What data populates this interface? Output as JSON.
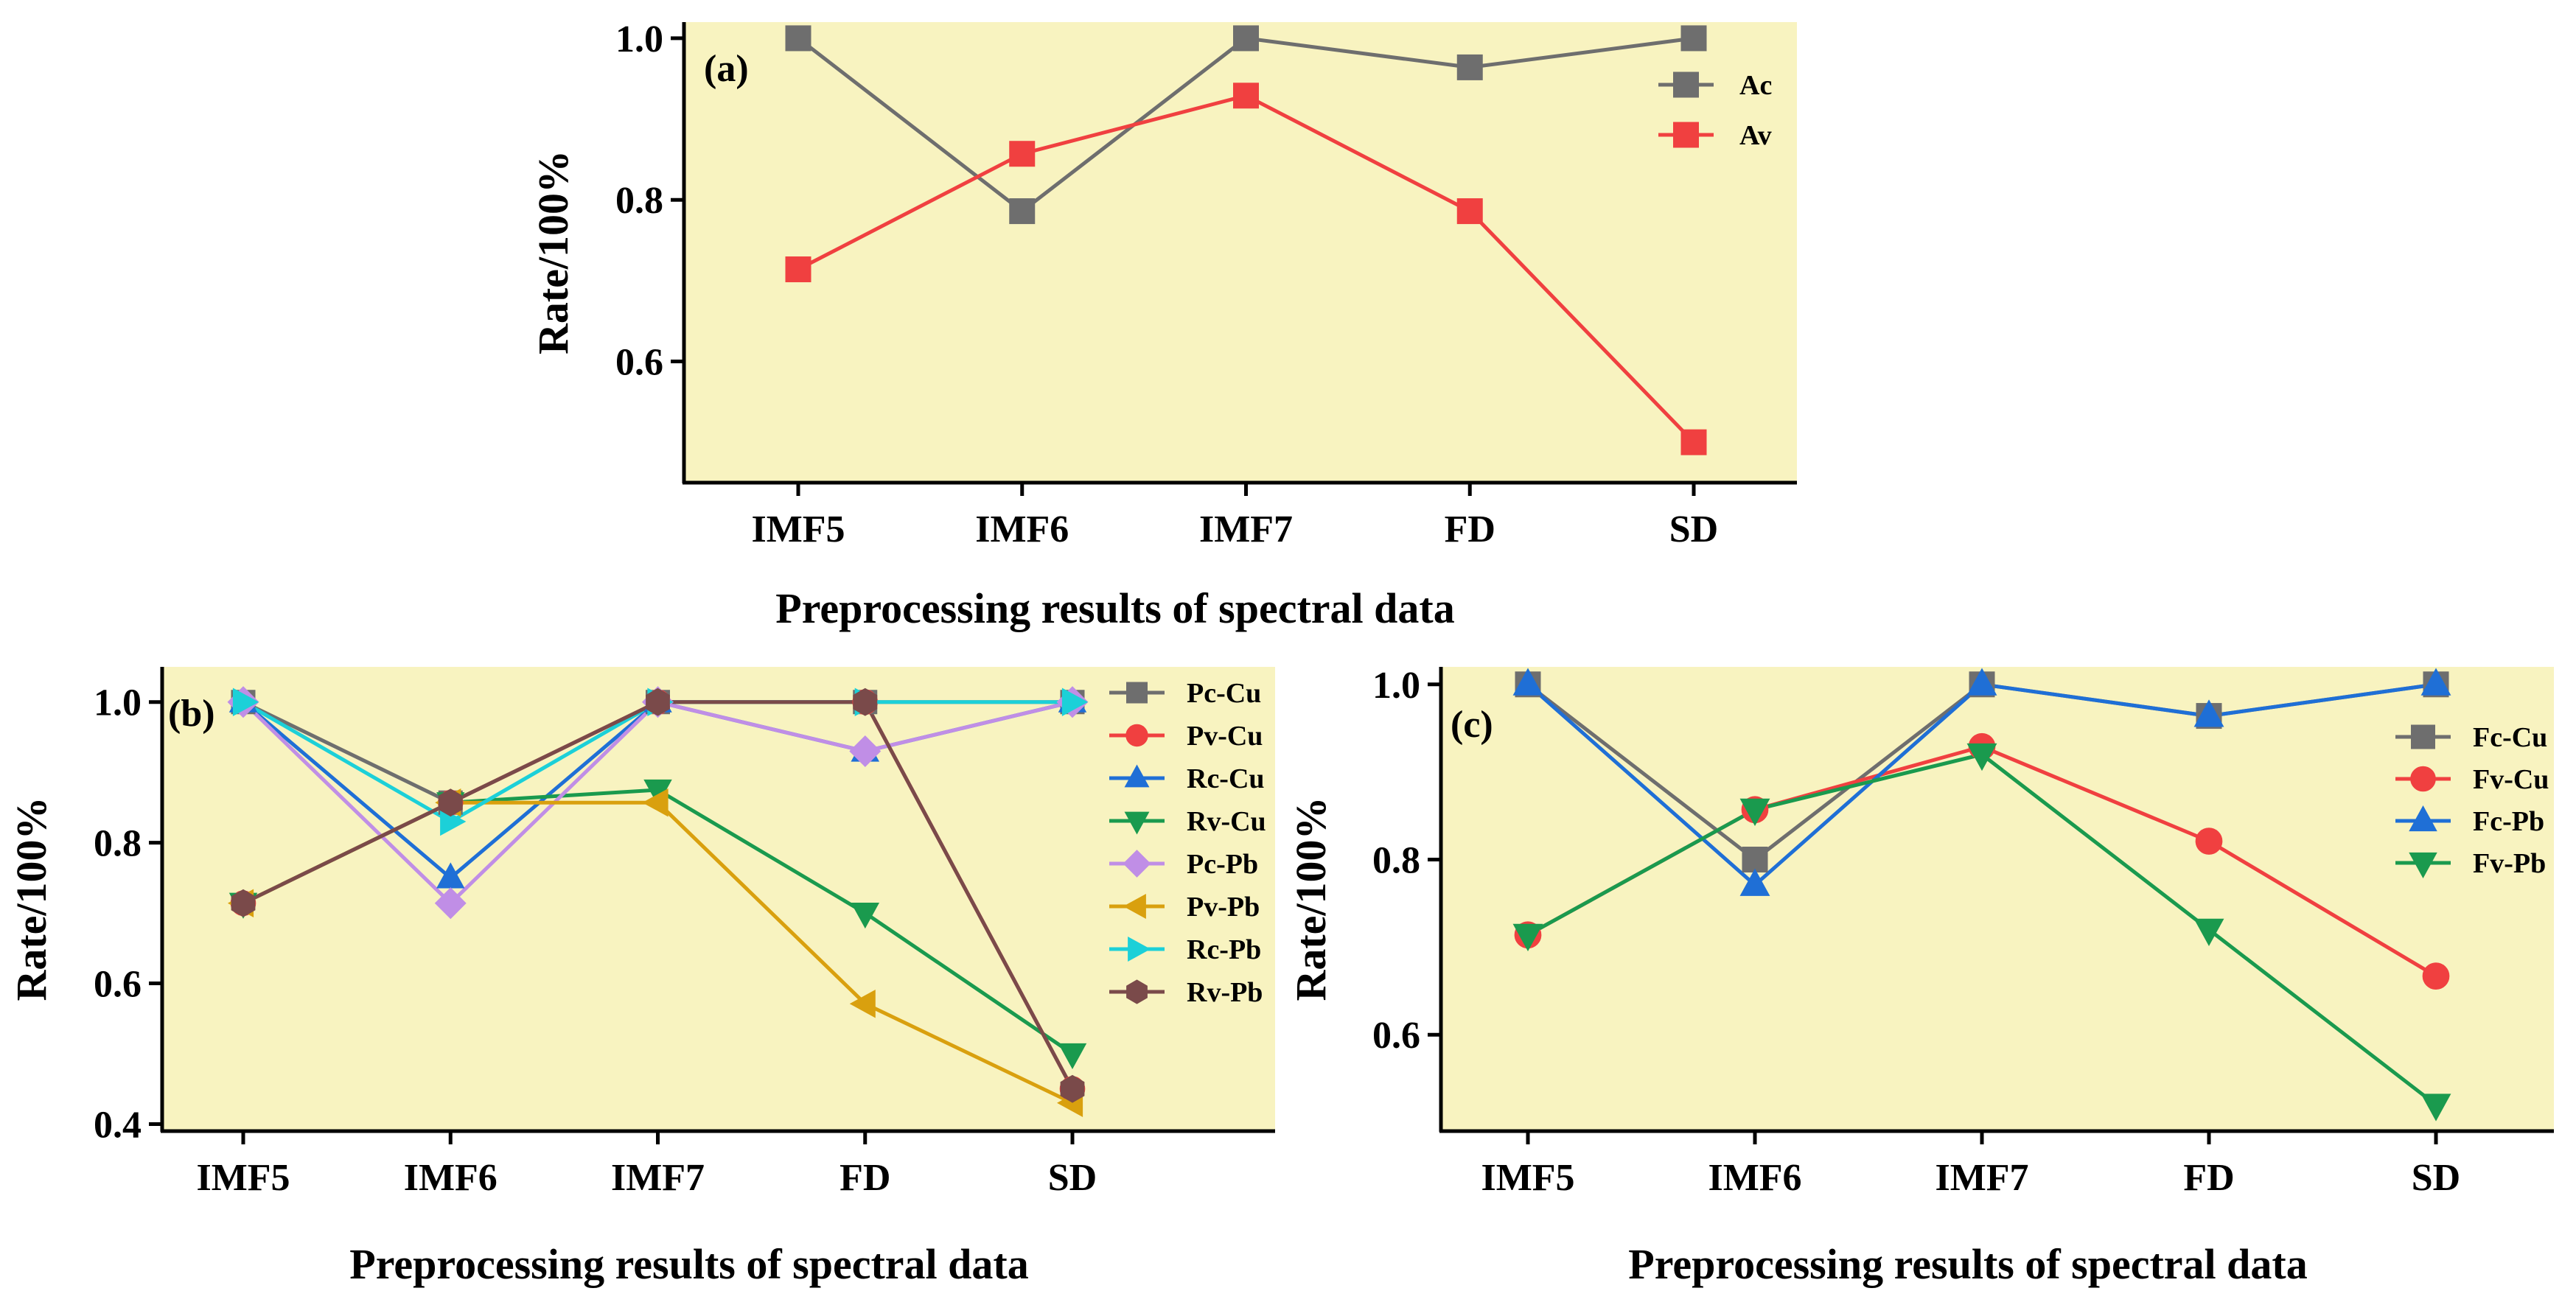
{
  "chart_data": [
    {
      "id": "a",
      "type": "line",
      "panel_label": "(a)",
      "xlabel": "Preprocessing results of spectral data",
      "ylabel": "Rate/100%",
      "categories": [
        "IMF5",
        "IMF6",
        "IMF7",
        "FD",
        "SD"
      ],
      "ylim": [
        0.45,
        1.02
      ],
      "yticks": [
        0.6,
        0.8,
        1.0
      ],
      "ytick_labels": [
        "0.6",
        "0.8",
        "1.0"
      ],
      "legend_position": "top-right",
      "background": "#f8f3c0",
      "series": [
        {
          "name": "Ac",
          "color": "#6e6e6e",
          "marker": "square",
          "values": [
            1.0,
            0.786,
            1.0,
            0.964,
            1.0
          ]
        },
        {
          "name": "Av",
          "color": "#f04040",
          "marker": "square",
          "values": [
            0.714,
            0.857,
            0.929,
            0.786,
            0.5
          ]
        }
      ]
    },
    {
      "id": "b",
      "type": "line",
      "panel_label": "(b)",
      "xlabel": "Preprocessing results of spectral data",
      "ylabel": "Rate/100%",
      "categories": [
        "IMF5",
        "IMF6",
        "IMF7",
        "FD",
        "SD"
      ],
      "ylim": [
        0.39,
        1.05
      ],
      "yticks": [
        0.4,
        0.6,
        0.8,
        1.0
      ],
      "ytick_labels": [
        "0.4",
        "0.6",
        "0.8",
        "1.0"
      ],
      "legend_position": "top-right",
      "background": "#f8f3c0",
      "series": [
        {
          "name": "Pc-Cu",
          "color": "#6e6e6e",
          "marker": "square",
          "values": [
            1.0,
            0.857,
            1.0,
            1.0,
            1.0
          ]
        },
        {
          "name": "Pv-Cu",
          "color": "#f04040",
          "marker": "circle",
          "values": [
            0.714,
            0.857,
            1.0,
            1.0,
            0.45
          ]
        },
        {
          "name": "Rc-Cu",
          "color": "#1f6fd6",
          "marker": "triangle-up",
          "values": [
            1.0,
            0.75,
            1.0,
            0.93,
            1.0
          ]
        },
        {
          "name": "Rv-Cu",
          "color": "#1a9a4e",
          "marker": "triangle-down",
          "values": [
            0.714,
            0.857,
            0.875,
            0.7,
            0.5
          ]
        },
        {
          "name": "Pc-Pb",
          "color": "#c08ee6",
          "marker": "diamond",
          "values": [
            1.0,
            0.714,
            1.0,
            0.93,
            1.0
          ]
        },
        {
          "name": "Pv-Pb",
          "color": "#d9a00e",
          "marker": "triangle-left",
          "values": [
            0.714,
            0.857,
            0.857,
            0.571,
            0.43
          ]
        },
        {
          "name": "Rc-Pb",
          "color": "#1cd0d8",
          "marker": "triangle-right",
          "values": [
            1.0,
            0.83,
            1.0,
            1.0,
            1.0
          ]
        },
        {
          "name": "Rv-Pb",
          "color": "#7a4a4a",
          "marker": "hexagon",
          "values": [
            0.714,
            0.857,
            1.0,
            1.0,
            0.45
          ]
        }
      ]
    },
    {
      "id": "c",
      "type": "line",
      "panel_label": "(c)",
      "xlabel": "Preprocessing results of spectral data",
      "ylabel": "Rate/100%",
      "categories": [
        "IMF5",
        "IMF6",
        "IMF7",
        "FD",
        "SD"
      ],
      "ylim": [
        0.49,
        1.02
      ],
      "yticks": [
        0.6,
        0.8,
        1.0
      ],
      "ytick_labels": [
        "0.6",
        "0.8",
        "1.0"
      ],
      "legend_position": "top-right",
      "background": "#f8f3c0",
      "series": [
        {
          "name": "Fc-Cu",
          "color": "#6e6e6e",
          "marker": "square",
          "values": [
            1.0,
            0.8,
            1.0,
            0.964,
            1.0
          ]
        },
        {
          "name": "Fv-Cu",
          "color": "#f04040",
          "marker": "circle",
          "values": [
            0.714,
            0.857,
            0.929,
            0.821,
            0.667
          ]
        },
        {
          "name": "Fc-Pb",
          "color": "#1f6fd6",
          "marker": "triangle-up",
          "values": [
            1.0,
            0.771,
            1.0,
            0.964,
            1.0
          ]
        },
        {
          "name": "Fv-Pb",
          "color": "#1a9a4e",
          "marker": "triangle-down",
          "values": [
            0.714,
            0.857,
            0.92,
            0.72,
            0.52
          ]
        }
      ]
    }
  ]
}
